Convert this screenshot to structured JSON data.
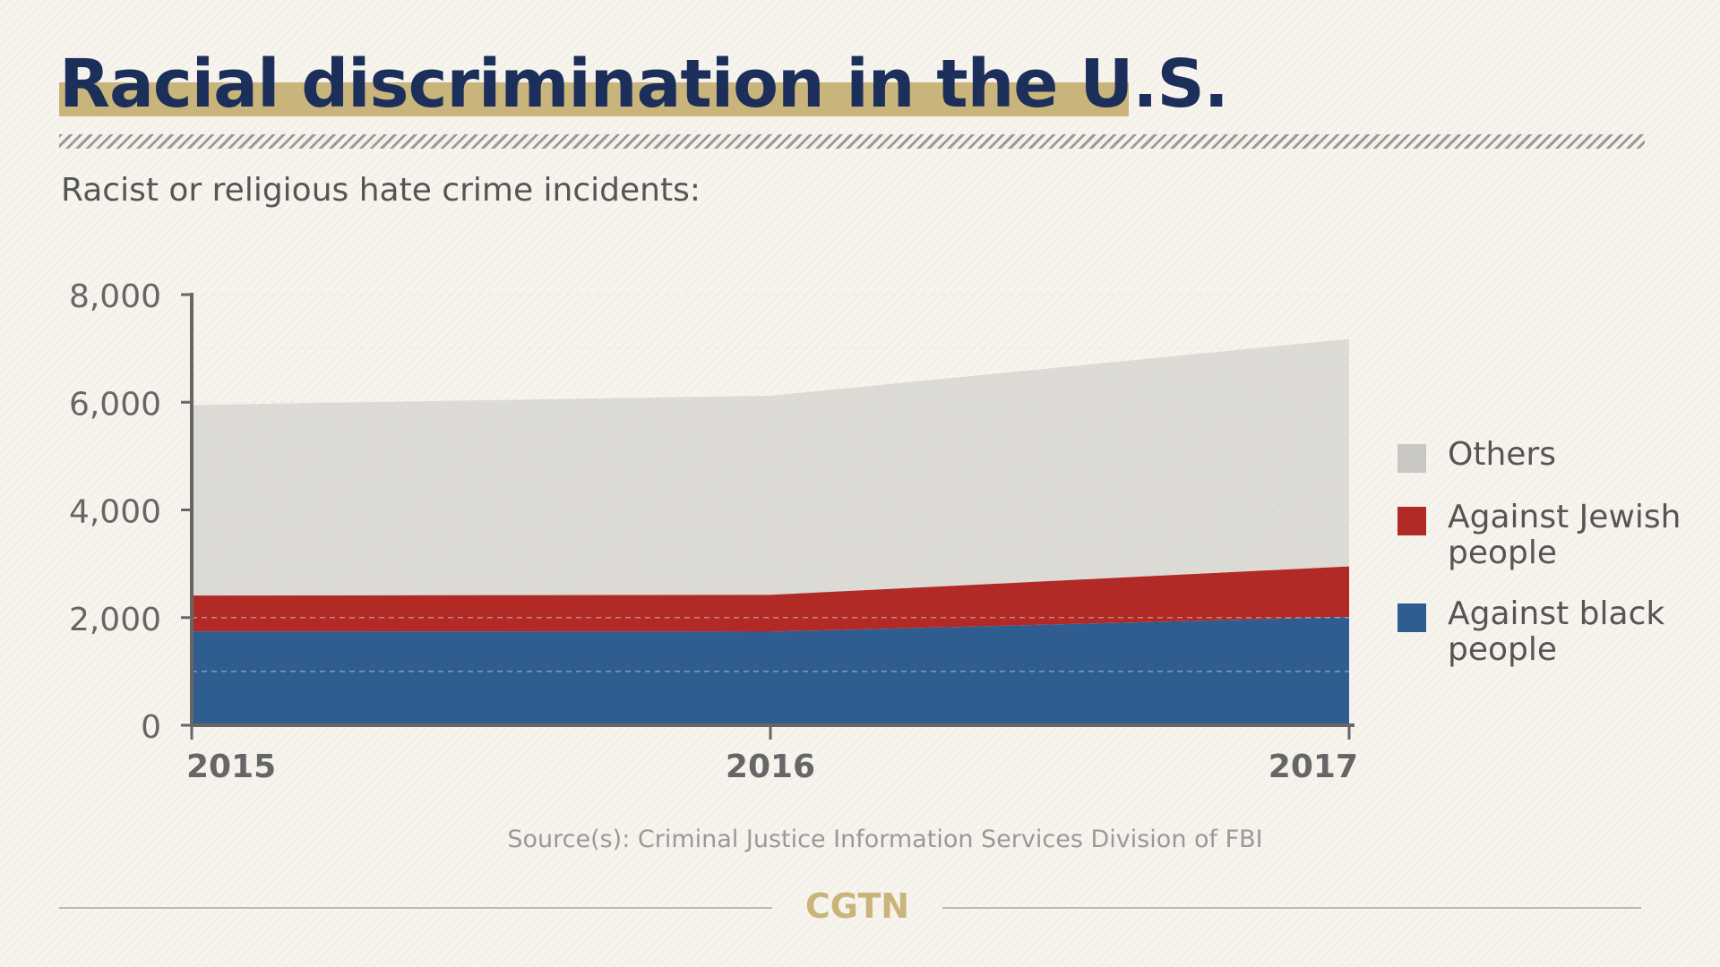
{
  "title": "Racial discrimination in the U.S.",
  "subtitle": "Racist or religious hate crime incidents:",
  "source": "Source(s):  Criminal Justice Information Services Division of FBI",
  "brand": "CGTN",
  "colors": {
    "title": "#1c2e5a",
    "title_highlight": "#c9b57b",
    "others": "#c9c7c3",
    "against_jewish": "#b22a26",
    "against_black": "#2f5d90",
    "brand": "#c9b57b"
  },
  "chart_data": {
    "type": "area",
    "stacked": true,
    "x": [
      "2015",
      "2016",
      "2017"
    ],
    "series": [
      {
        "name": "Against black people",
        "values": [
          1745,
          1739,
          2013
        ]
      },
      {
        "name": "Against Jewish people",
        "values": [
          664,
          684,
          938
        ]
      },
      {
        "name": "Others",
        "values": [
          3541,
          3698,
          4224
        ]
      }
    ],
    "ylim": [
      0,
      8000
    ],
    "yticks": [
      "0",
      "2,000",
      "4,000",
      "6,000",
      "8,000"
    ],
    "ytick_values": [
      0,
      2000,
      4000,
      6000,
      8000
    ],
    "grid": true,
    "legend_position": "right"
  },
  "legend": [
    {
      "label_line1": "Others",
      "label_line2": ""
    },
    {
      "label_line1": "Against Jewish",
      "label_line2": "people"
    },
    {
      "label_line1": "Against black",
      "label_line2": "people"
    }
  ]
}
